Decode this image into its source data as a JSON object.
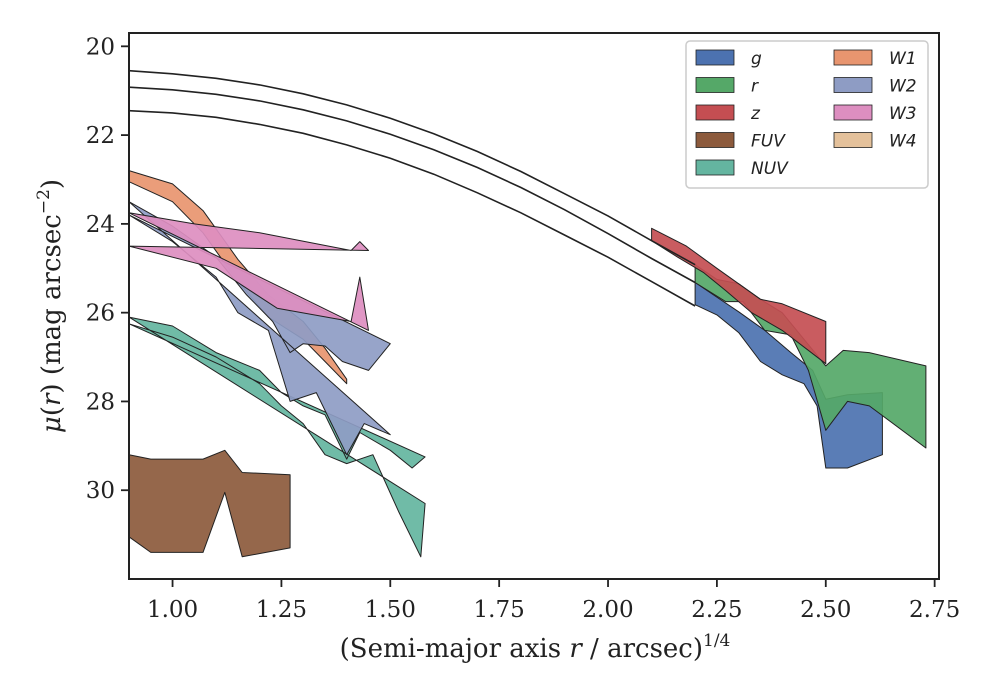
{
  "chart_data": {
    "type": "area",
    "xlabel": "(Semi-major axis r / arcsec)^{1/4}",
    "ylabel": "μ(r) (mag arcsec⁻²)",
    "xlabel_parts": {
      "pre": "(Semi-major axis ",
      "var": "r",
      "mid": " / arcsec)",
      "sup": "1/4"
    },
    "ylabel_parts": {
      "var1": "μ",
      "paren_open": "(",
      "var2": "r",
      "paren_close": ") (mag arcsec",
      "sup": "−2",
      "end": ")"
    },
    "xlim": [
      0.9,
      2.76
    ],
    "ylim": [
      32.0,
      19.7
    ],
    "y_inverted": true,
    "x_ticks": [
      "1.00",
      "1.25",
      "1.50",
      "1.75",
      "2.00",
      "2.25",
      "2.50",
      "2.75"
    ],
    "x_tick_values": [
      1.0,
      1.25,
      1.5,
      1.75,
      2.0,
      2.25,
      2.5,
      2.75
    ],
    "y_ticks": [
      "20",
      "22",
      "24",
      "26",
      "28",
      "30"
    ],
    "y_tick_values": [
      20,
      22,
      24,
      26,
      28,
      30
    ],
    "grid": false,
    "legend_position": "top-right",
    "legend_columns": 2,
    "model_lines": [
      {
        "x": [
          0.9,
          1.0,
          1.1,
          1.2,
          1.3,
          1.4,
          1.5,
          1.6,
          1.7,
          1.8,
          1.9,
          2.0,
          2.1,
          2.2
        ],
        "y": [
          20.55,
          20.62,
          20.72,
          20.87,
          21.07,
          21.32,
          21.62,
          21.97,
          22.37,
          22.82,
          23.32,
          23.82,
          24.38,
          24.92
        ]
      },
      {
        "x": [
          0.9,
          1.0,
          1.1,
          1.2,
          1.3,
          1.4,
          1.5,
          1.6,
          1.7,
          1.8,
          1.9,
          2.0,
          2.1,
          2.2
        ],
        "y": [
          20.92,
          20.98,
          21.08,
          21.23,
          21.43,
          21.68,
          21.98,
          22.33,
          22.73,
          23.18,
          23.68,
          24.22,
          24.78,
          25.32
        ]
      },
      {
        "x": [
          0.9,
          1.0,
          1.1,
          1.2,
          1.3,
          1.4,
          1.5,
          1.6,
          1.7,
          1.8,
          1.9,
          2.0,
          2.1,
          2.2
        ],
        "y": [
          21.45,
          21.5,
          21.6,
          21.76,
          21.96,
          22.22,
          22.52,
          22.88,
          23.3,
          23.75,
          24.25,
          24.75,
          25.3,
          25.85
        ]
      }
    ],
    "series": [
      {
        "name": "g",
        "color": "#4c72b0",
        "upper": [
          [
            2.2,
            25.32
          ],
          [
            2.3,
            25.98
          ],
          [
            2.36,
            26.4
          ],
          [
            2.42,
            26.9
          ],
          [
            2.47,
            27.3
          ],
          [
            2.5,
            27.95
          ],
          [
            2.55,
            27.85
          ],
          [
            2.63,
            27.8
          ]
        ],
        "lower": [
          [
            2.2,
            25.82
          ],
          [
            2.25,
            26.05
          ],
          [
            2.3,
            26.45
          ],
          [
            2.35,
            27.1
          ],
          [
            2.4,
            27.4
          ],
          [
            2.45,
            27.6
          ],
          [
            2.48,
            28.1
          ],
          [
            2.5,
            29.5
          ],
          [
            2.55,
            29.5
          ],
          [
            2.63,
            29.2
          ]
        ]
      },
      {
        "name": "r",
        "color": "#55a868",
        "upper": [
          [
            2.2,
            24.92
          ],
          [
            2.25,
            25.25
          ],
          [
            2.3,
            25.35
          ],
          [
            2.35,
            25.7
          ],
          [
            2.4,
            26.0
          ],
          [
            2.45,
            26.6
          ],
          [
            2.5,
            27.2
          ],
          [
            2.54,
            26.85
          ],
          [
            2.6,
            26.9
          ],
          [
            2.73,
            27.2
          ]
        ],
        "lower": [
          [
            2.2,
            25.32
          ],
          [
            2.27,
            25.75
          ],
          [
            2.31,
            25.75
          ],
          [
            2.36,
            26.4
          ],
          [
            2.42,
            26.5
          ],
          [
            2.46,
            27.3
          ],
          [
            2.5,
            28.65
          ],
          [
            2.55,
            28.0
          ],
          [
            2.6,
            28.1
          ],
          [
            2.73,
            29.05
          ]
        ]
      },
      {
        "name": "z",
        "color": "#c44e52",
        "upper": [
          [
            2.1,
            24.1
          ],
          [
            2.18,
            24.5
          ],
          [
            2.25,
            25.0
          ],
          [
            2.3,
            25.35
          ],
          [
            2.35,
            25.7
          ],
          [
            2.4,
            25.8
          ],
          [
            2.5,
            26.2
          ]
        ],
        "lower": [
          [
            2.1,
            24.38
          ],
          [
            2.16,
            24.75
          ],
          [
            2.22,
            25.1
          ],
          [
            2.27,
            25.5
          ],
          [
            2.33,
            26.0
          ],
          [
            2.4,
            26.4
          ],
          [
            2.5,
            27.15
          ]
        ]
      },
      {
        "name": "FUV",
        "color": "#8c5a3c",
        "upper": [
          [
            0.9,
            29.2
          ],
          [
            0.95,
            29.3
          ],
          [
            1.07,
            29.3
          ],
          [
            1.12,
            29.1
          ],
          [
            1.16,
            29.6
          ],
          [
            1.27,
            29.65
          ]
        ],
        "lower": [
          [
            0.9,
            31.05
          ],
          [
            0.95,
            31.4
          ],
          [
            1.07,
            31.4
          ],
          [
            1.12,
            30.05
          ],
          [
            1.16,
            31.5
          ],
          [
            1.27,
            31.3
          ]
        ]
      },
      {
        "name": "NUV",
        "color": "#64b5a0",
        "upper": [
          [
            0.9,
            26.1
          ],
          [
            1.0,
            26.3
          ],
          [
            1.1,
            26.9
          ],
          [
            1.2,
            27.3
          ],
          [
            1.25,
            27.8
          ],
          [
            1.3,
            28.1
          ],
          [
            1.35,
            28.3
          ],
          [
            1.4,
            29.3
          ],
          [
            1.43,
            28.7
          ],
          [
            1.5,
            29.1
          ],
          [
            1.55,
            29.5
          ],
          [
            1.58,
            29.25
          ]
        ],
        "lower": [
          [
            1.58,
            30.3
          ],
          [
            1.57,
            31.5
          ],
          [
            1.52,
            30.5
          ],
          [
            1.46,
            29.2
          ],
          [
            1.4,
            29.4
          ],
          [
            1.35,
            29.2
          ],
          [
            1.3,
            28.5
          ],
          [
            1.25,
            28.1
          ],
          [
            1.2,
            27.6
          ],
          [
            1.1,
            27.0
          ],
          [
            1.0,
            26.55
          ],
          [
            0.9,
            26.25
          ]
        ]
      },
      {
        "name": "W1",
        "color": "#e8956f",
        "upper": [
          [
            0.9,
            22.8
          ],
          [
            1.0,
            23.1
          ],
          [
            1.07,
            23.7
          ],
          [
            1.15,
            24.8
          ],
          [
            1.22,
            25.6
          ],
          [
            1.3,
            26.2
          ],
          [
            1.35,
            26.8
          ],
          [
            1.4,
            27.5
          ]
        ],
        "lower": [
          [
            0.9,
            23.05
          ],
          [
            1.0,
            23.5
          ],
          [
            1.07,
            24.2
          ],
          [
            1.15,
            25.3
          ],
          [
            1.22,
            26.1
          ],
          [
            1.3,
            26.6
          ],
          [
            1.35,
            27.1
          ],
          [
            1.4,
            27.6
          ]
        ]
      },
      {
        "name": "W2",
        "color": "#8e9cc4",
        "upper": [
          [
            0.9,
            23.5
          ],
          [
            1.0,
            24.05
          ],
          [
            1.1,
            24.75
          ],
          [
            1.17,
            25.6
          ],
          [
            1.23,
            26.2
          ],
          [
            1.27,
            26.9
          ],
          [
            1.3,
            26.7
          ],
          [
            1.35,
            26.75
          ],
          [
            1.39,
            27.1
          ],
          [
            1.45,
            27.3
          ],
          [
            1.5,
            26.7
          ]
        ],
        "lower": [
          [
            1.5,
            28.75
          ],
          [
            1.44,
            28.5
          ],
          [
            1.4,
            29.2
          ],
          [
            1.37,
            28.6
          ],
          [
            1.33,
            27.8
          ],
          [
            1.27,
            28.0
          ],
          [
            1.22,
            26.4
          ],
          [
            1.15,
            26.0
          ],
          [
            1.1,
            25.2
          ],
          [
            1.0,
            24.4
          ],
          [
            0.9,
            23.8
          ]
        ]
      },
      {
        "name": "W3",
        "color": "#dd8ec0",
        "upper": [
          [
            0.9,
            23.75
          ],
          [
            1.05,
            24.0
          ],
          [
            1.2,
            24.2
          ],
          [
            1.41,
            24.6
          ],
          [
            1.43,
            24.4
          ],
          [
            1.45,
            24.6
          ]
        ],
        "lower": [
          [
            1.45,
            26.4
          ],
          [
            1.43,
            25.2
          ],
          [
            1.41,
            26.2
          ],
          [
            1.24,
            25.9
          ],
          [
            1.1,
            25.0
          ],
          [
            0.9,
            24.5
          ]
        ]
      },
      {
        "name": "W4",
        "color": "#e4c19b",
        "upper": [],
        "lower": []
      }
    ]
  }
}
